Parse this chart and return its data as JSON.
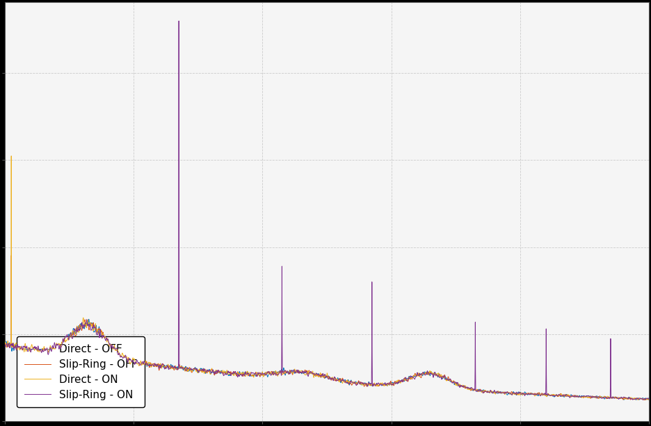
{
  "title": "",
  "xlabel": "",
  "ylabel": "",
  "colors": {
    "direct_off": "#0072BD",
    "slipring_off": "#D95319",
    "direct_on": "#EDB120",
    "slipring_on": "#7E2F8E"
  },
  "legend_labels": [
    "Direct - OFF",
    "Slip-Ring - OFF",
    "Direct - ON",
    "Slip-Ring - ON"
  ],
  "background_color": "#f5f5f5",
  "grid_color": "#cccccc",
  "figsize": [
    9.36,
    6.13
  ],
  "dpi": 100,
  "n_points": 3000,
  "seed": 12345,
  "linewidth": 0.7
}
